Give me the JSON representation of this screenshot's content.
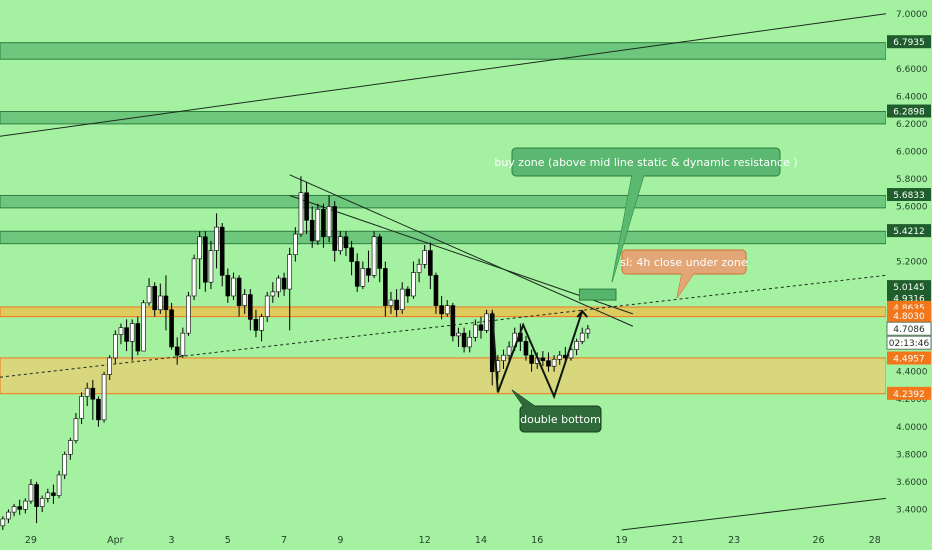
{
  "chart_data": {
    "type": "candlestick",
    "ylim": [
      3.25,
      7.1
    ],
    "xlim": [
      -1.1,
      30.4
    ],
    "yticks": [
      "7.0000",
      "6.6000",
      "6.4000",
      "6.2000",
      "6.0000",
      "5.8000",
      "5.6000",
      "5.2000",
      "4.4000",
      "4.2000",
      "4.0000",
      "3.8000",
      "3.6000",
      "3.4000"
    ],
    "ytick_values": [
      7.0,
      6.6,
      6.4,
      6.2,
      6.0,
      5.8,
      5.6,
      5.2,
      4.4,
      4.2,
      4.0,
      3.8,
      3.6,
      3.4
    ],
    "xticks": [
      {
        "label": "29",
        "day": 0
      },
      {
        "label": "Apr",
        "day": 3
      },
      {
        "label": "3",
        "day": 5
      },
      {
        "label": "5",
        "day": 7
      },
      {
        "label": "7",
        "day": 9
      },
      {
        "label": "9",
        "day": 11
      },
      {
        "label": "12",
        "day": 14
      },
      {
        "label": "14",
        "day": 16
      },
      {
        "label": "16",
        "day": 18
      },
      {
        "label": "19",
        "day": 21
      },
      {
        "label": "21",
        "day": 23
      },
      {
        "label": "23",
        "day": 25
      },
      {
        "label": "26",
        "day": 28
      },
      {
        "label": "28",
        "day": 30
      }
    ],
    "zones": [
      {
        "name": "zone-6.79",
        "from": 6.67,
        "to": 6.79,
        "color": "#3fa45c"
      },
      {
        "name": "zone-6.29",
        "from": 6.2,
        "to": 6.29,
        "color": "#3fa45c"
      },
      {
        "name": "zone-5.68",
        "from": 5.59,
        "to": 5.68,
        "color": "#3fa45c"
      },
      {
        "name": "zone-5.42",
        "from": 5.33,
        "to": 5.42,
        "color": "#3fa45c"
      },
      {
        "name": "zone-4.86",
        "from": 4.8,
        "to": 4.87,
        "color": "#e6c15a"
      },
      {
        "name": "zone-4.49",
        "from": 4.24,
        "to": 4.5,
        "color": "#d7d27a"
      }
    ],
    "price_labels": [
      {
        "text": "6.7935",
        "value": 6.7935,
        "color": "#1f5e2c"
      },
      {
        "text": "6.2898",
        "value": 6.2898,
        "color": "#1f5e2c"
      },
      {
        "text": "5.6833",
        "value": 5.6833,
        "color": "#1f5e2c"
      },
      {
        "text": "5.4212",
        "value": 5.4212,
        "color": "#1f5e2c"
      },
      {
        "text": "5.0145",
        "value": 5.0145,
        "color": "#1f5e2c"
      },
      {
        "text": "4.9316",
        "value": 4.9316,
        "color": "#1f5e2c"
      },
      {
        "text": "4.8635",
        "value": 4.8635,
        "color": "#f2761a"
      },
      {
        "text": "4.8030",
        "value": 4.803,
        "color": "#f2761a"
      },
      {
        "text": "4.7086",
        "value": 4.7086,
        "color": "#ffffff"
      },
      {
        "text": "4.4957",
        "value": 4.4957,
        "color": "#f2761a"
      },
      {
        "text": "4.2392",
        "value": 4.2392,
        "color": "#f2761a"
      }
    ],
    "current_price": "4.7086",
    "countdown": "02:13:46",
    "candles": [
      {
        "x": -1.0,
        "o": 3.28,
        "h": 3.35,
        "c": 3.33,
        "l": 3.25
      },
      {
        "x": -0.8,
        "o": 3.33,
        "h": 3.4,
        "c": 3.38,
        "l": 3.3
      },
      {
        "x": -0.6,
        "o": 3.38,
        "h": 3.44,
        "c": 3.42,
        "l": 3.35
      },
      {
        "x": -0.4,
        "o": 3.42,
        "h": 3.47,
        "c": 3.4,
        "l": 3.36
      },
      {
        "x": -0.2,
        "o": 3.4,
        "h": 3.48,
        "c": 3.46,
        "l": 3.37
      },
      {
        "x": 0.0,
        "o": 3.46,
        "h": 3.62,
        "c": 3.58,
        "l": 3.44
      },
      {
        "x": 0.2,
        "o": 3.58,
        "h": 3.6,
        "c": 3.42,
        "l": 3.3
      },
      {
        "x": 0.4,
        "o": 3.42,
        "h": 3.5,
        "c": 3.48,
        "l": 3.38
      },
      {
        "x": 0.6,
        "o": 3.48,
        "h": 3.55,
        "c": 3.52,
        "l": 3.45
      },
      {
        "x": 0.8,
        "o": 3.52,
        "h": 3.58,
        "c": 3.5,
        "l": 3.44
      },
      {
        "x": 1.0,
        "o": 3.5,
        "h": 3.68,
        "c": 3.65,
        "l": 3.48
      },
      {
        "x": 1.2,
        "o": 3.65,
        "h": 3.82,
        "c": 3.8,
        "l": 3.62
      },
      {
        "x": 1.4,
        "o": 3.8,
        "h": 3.92,
        "c": 3.9,
        "l": 3.76
      },
      {
        "x": 1.6,
        "o": 3.9,
        "h": 4.1,
        "c": 4.06,
        "l": 3.88
      },
      {
        "x": 1.8,
        "o": 4.06,
        "h": 4.25,
        "c": 4.22,
        "l": 4.02
      },
      {
        "x": 2.0,
        "o": 4.22,
        "h": 4.32,
        "c": 4.28,
        "l": 4.15
      },
      {
        "x": 2.2,
        "o": 4.28,
        "h": 4.34,
        "c": 4.2,
        "l": 4.05
      },
      {
        "x": 2.4,
        "o": 4.2,
        "h": 4.22,
        "c": 4.05,
        "l": 4.0
      },
      {
        "x": 2.6,
        "o": 4.05,
        "h": 4.4,
        "c": 4.38,
        "l": 4.03
      },
      {
        "x": 2.8,
        "o": 4.38,
        "h": 4.52,
        "c": 4.5,
        "l": 4.34
      },
      {
        "x": 3.0,
        "o": 4.5,
        "h": 4.7,
        "c": 4.67,
        "l": 4.46
      },
      {
        "x": 3.2,
        "o": 4.67,
        "h": 4.75,
        "c": 4.72,
        "l": 4.6
      },
      {
        "x": 3.4,
        "o": 4.72,
        "h": 4.78,
        "c": 4.62,
        "l": 4.55
      },
      {
        "x": 3.6,
        "o": 4.62,
        "h": 4.78,
        "c": 4.75,
        "l": 4.48
      },
      {
        "x": 3.8,
        "o": 4.75,
        "h": 4.8,
        "c": 4.55,
        "l": 4.52
      },
      {
        "x": 4.0,
        "o": 4.55,
        "h": 4.92,
        "c": 4.9,
        "l": 4.55
      },
      {
        "x": 4.2,
        "o": 4.9,
        "h": 5.08,
        "c": 5.02,
        "l": 4.88
      },
      {
        "x": 4.4,
        "o": 5.02,
        "h": 5.05,
        "c": 4.85,
        "l": 4.8
      },
      {
        "x": 4.6,
        "o": 4.85,
        "h": 5.04,
        "c": 4.95,
        "l": 4.82
      },
      {
        "x": 4.8,
        "o": 4.95,
        "h": 5.1,
        "c": 4.85,
        "l": 4.7
      },
      {
        "x": 5.0,
        "o": 4.85,
        "h": 4.9,
        "c": 4.58,
        "l": 4.56
      },
      {
        "x": 5.2,
        "o": 4.58,
        "h": 4.65,
        "c": 4.52,
        "l": 4.45
      },
      {
        "x": 5.4,
        "o": 4.52,
        "h": 4.72,
        "c": 4.68,
        "l": 4.5
      },
      {
        "x": 5.6,
        "o": 4.68,
        "h": 4.98,
        "c": 4.95,
        "l": 4.66
      },
      {
        "x": 5.8,
        "o": 4.95,
        "h": 5.25,
        "c": 5.22,
        "l": 4.92
      },
      {
        "x": 6.0,
        "o": 5.22,
        "h": 5.42,
        "c": 5.38,
        "l": 5.0
      },
      {
        "x": 6.2,
        "o": 5.38,
        "h": 5.42,
        "c": 5.05,
        "l": 4.98
      },
      {
        "x": 6.4,
        "o": 5.05,
        "h": 5.35,
        "c": 5.28,
        "l": 5.0
      },
      {
        "x": 6.6,
        "o": 5.28,
        "h": 5.55,
        "c": 5.45,
        "l": 5.15
      },
      {
        "x": 6.8,
        "o": 5.45,
        "h": 5.48,
        "c": 5.1,
        "l": 5.02
      },
      {
        "x": 7.0,
        "o": 5.1,
        "h": 5.15,
        "c": 4.95,
        "l": 4.9
      },
      {
        "x": 7.2,
        "o": 4.95,
        "h": 5.12,
        "c": 5.08,
        "l": 4.92
      },
      {
        "x": 7.4,
        "o": 5.08,
        "h": 5.1,
        "c": 4.88,
        "l": 4.8
      },
      {
        "x": 7.6,
        "o": 4.88,
        "h": 5.0,
        "c": 4.96,
        "l": 4.82
      },
      {
        "x": 7.8,
        "o": 4.96,
        "h": 5.0,
        "c": 4.78,
        "l": 4.7
      },
      {
        "x": 8.0,
        "o": 4.78,
        "h": 4.85,
        "c": 4.7,
        "l": 4.65
      },
      {
        "x": 8.2,
        "o": 4.7,
        "h": 4.82,
        "c": 4.8,
        "l": 4.62
      },
      {
        "x": 8.4,
        "o": 4.8,
        "h": 4.98,
        "c": 4.95,
        "l": 4.76
      },
      {
        "x": 8.6,
        "o": 4.95,
        "h": 5.05,
        "c": 4.98,
        "l": 4.9
      },
      {
        "x": 8.8,
        "o": 4.98,
        "h": 5.1,
        "c": 5.08,
        "l": 4.94
      },
      {
        "x": 9.0,
        "o": 5.08,
        "h": 5.12,
        "c": 5.0,
        "l": 4.95
      },
      {
        "x": 9.2,
        "o": 5.0,
        "h": 5.3,
        "c": 5.25,
        "l": 4.7
      },
      {
        "x": 9.4,
        "o": 5.25,
        "h": 5.45,
        "c": 5.4,
        "l": 5.2
      },
      {
        "x": 9.6,
        "o": 5.4,
        "h": 5.82,
        "c": 5.7,
        "l": 5.38
      },
      {
        "x": 9.8,
        "o": 5.7,
        "h": 5.78,
        "c": 5.5,
        "l": 5.4
      },
      {
        "x": 10.0,
        "o": 5.5,
        "h": 5.6,
        "c": 5.35,
        "l": 5.3
      },
      {
        "x": 10.2,
        "o": 5.35,
        "h": 5.62,
        "c": 5.58,
        "l": 5.32
      },
      {
        "x": 10.4,
        "o": 5.58,
        "h": 5.62,
        "c": 5.38,
        "l": 5.3
      },
      {
        "x": 10.6,
        "o": 5.38,
        "h": 5.68,
        "c": 5.6,
        "l": 5.34
      },
      {
        "x": 10.8,
        "o": 5.6,
        "h": 5.64,
        "c": 5.28,
        "l": 5.2
      },
      {
        "x": 11.0,
        "o": 5.28,
        "h": 5.42,
        "c": 5.38,
        "l": 5.25
      },
      {
        "x": 11.2,
        "o": 5.38,
        "h": 5.42,
        "c": 5.3,
        "l": 5.24
      },
      {
        "x": 11.4,
        "o": 5.3,
        "h": 5.35,
        "c": 5.2,
        "l": 5.1
      },
      {
        "x": 11.6,
        "o": 5.2,
        "h": 5.26,
        "c": 5.02,
        "l": 4.98
      },
      {
        "x": 11.8,
        "o": 5.02,
        "h": 5.2,
        "c": 5.15,
        "l": 5.0
      },
      {
        "x": 12.0,
        "o": 5.15,
        "h": 5.28,
        "c": 5.1,
        "l": 5.05
      },
      {
        "x": 12.2,
        "o": 5.1,
        "h": 5.42,
        "c": 5.38,
        "l": 5.08
      },
      {
        "x": 12.4,
        "o": 5.38,
        "h": 5.4,
        "c": 5.15,
        "l": 5.05
      },
      {
        "x": 12.6,
        "o": 5.15,
        "h": 5.2,
        "c": 4.88,
        "l": 4.8
      },
      {
        "x": 12.8,
        "o": 4.88,
        "h": 4.98,
        "c": 4.92,
        "l": 4.82
      },
      {
        "x": 13.0,
        "o": 4.92,
        "h": 5.0,
        "c": 4.85,
        "l": 4.8
      },
      {
        "x": 13.2,
        "o": 4.85,
        "h": 5.05,
        "c": 5.0,
        "l": 4.82
      },
      {
        "x": 13.4,
        "o": 5.0,
        "h": 5.02,
        "c": 4.95,
        "l": 4.9
      },
      {
        "x": 13.6,
        "o": 4.95,
        "h": 5.2,
        "c": 5.12,
        "l": 4.93
      },
      {
        "x": 13.8,
        "o": 5.12,
        "h": 5.22,
        "c": 5.18,
        "l": 5.05
      },
      {
        "x": 14.0,
        "o": 5.18,
        "h": 5.32,
        "c": 5.28,
        "l": 5.15
      },
      {
        "x": 14.2,
        "o": 5.28,
        "h": 5.34,
        "c": 5.1,
        "l": 5.0
      },
      {
        "x": 14.4,
        "o": 5.1,
        "h": 5.12,
        "c": 4.88,
        "l": 4.82
      },
      {
        "x": 14.6,
        "o": 4.88,
        "h": 4.95,
        "c": 4.82,
        "l": 4.78
      },
      {
        "x": 14.8,
        "o": 4.82,
        "h": 4.92,
        "c": 4.88,
        "l": 4.8
      },
      {
        "x": 15.0,
        "o": 4.88,
        "h": 4.9,
        "c": 4.66,
        "l": 4.62
      },
      {
        "x": 15.2,
        "o": 4.66,
        "h": 4.72,
        "c": 4.68,
        "l": 4.58
      },
      {
        "x": 15.4,
        "o": 4.68,
        "h": 4.72,
        "c": 4.58,
        "l": 4.54
      },
      {
        "x": 15.6,
        "o": 4.58,
        "h": 4.7,
        "c": 4.65,
        "l": 4.54
      },
      {
        "x": 15.8,
        "o": 4.65,
        "h": 4.78,
        "c": 4.74,
        "l": 4.62
      },
      {
        "x": 16.0,
        "o": 4.74,
        "h": 4.8,
        "c": 4.7,
        "l": 4.64
      },
      {
        "x": 16.2,
        "o": 4.7,
        "h": 4.85,
        "c": 4.82,
        "l": 4.68
      },
      {
        "x": 16.4,
        "o": 4.82,
        "h": 4.85,
        "c": 4.4,
        "l": 4.3
      },
      {
        "x": 16.6,
        "o": 4.4,
        "h": 4.52,
        "c": 4.48,
        "l": 4.34
      },
      {
        "x": 16.8,
        "o": 4.48,
        "h": 4.56,
        "c": 4.52,
        "l": 4.42
      },
      {
        "x": 17.0,
        "o": 4.52,
        "h": 4.62,
        "c": 4.58,
        "l": 4.48
      },
      {
        "x": 17.2,
        "o": 4.58,
        "h": 4.72,
        "c": 4.68,
        "l": 4.55
      },
      {
        "x": 17.4,
        "o": 4.68,
        "h": 4.75,
        "c": 4.62,
        "l": 4.55
      },
      {
        "x": 17.6,
        "o": 4.62,
        "h": 4.66,
        "c": 4.52,
        "l": 4.48
      },
      {
        "x": 17.8,
        "o": 4.52,
        "h": 4.56,
        "c": 4.46,
        "l": 4.4
      },
      {
        "x": 18.0,
        "o": 4.46,
        "h": 4.54,
        "c": 4.5,
        "l": 4.42
      },
      {
        "x": 18.2,
        "o": 4.5,
        "h": 4.55,
        "c": 4.48,
        "l": 4.44
      },
      {
        "x": 18.4,
        "o": 4.48,
        "h": 4.54,
        "c": 4.44,
        "l": 4.4
      },
      {
        "x": 18.6,
        "o": 4.44,
        "h": 4.52,
        "c": 4.49,
        "l": 4.4
      },
      {
        "x": 18.8,
        "o": 4.49,
        "h": 4.55,
        "c": 4.52,
        "l": 4.45
      },
      {
        "x": 19.0,
        "o": 4.52,
        "h": 4.58,
        "c": 4.5,
        "l": 4.46
      },
      {
        "x": 19.2,
        "o": 4.5,
        "h": 4.6,
        "c": 4.56,
        "l": 4.48
      },
      {
        "x": 19.4,
        "o": 4.56,
        "h": 4.64,
        "c": 4.62,
        "l": 4.52
      },
      {
        "x": 19.6,
        "o": 4.62,
        "h": 4.72,
        "c": 4.68,
        "l": 4.6
      },
      {
        "x": 19.8,
        "o": 4.68,
        "h": 4.74,
        "c": 4.71,
        "l": 4.64
      }
    ],
    "trendlines": [
      {
        "name": "long-uptrend-line",
        "p1": [
          -1.1,
          6.11
        ],
        "p2": [
          30.4,
          7.0
        ],
        "style": "solid"
      },
      {
        "name": "lower-channel-line",
        "p1": [
          21.0,
          3.25
        ],
        "p2": [
          30.4,
          3.48
        ],
        "style": "solid"
      },
      {
        "name": "dynamic-resistance-upper",
        "p1": [
          9.2,
          5.83
        ],
        "p2": [
          21.4,
          4.73
        ],
        "style": "solid"
      },
      {
        "name": "dynamic-resistance-lower",
        "p1": [
          9.2,
          5.68
        ],
        "p2": [
          21.4,
          4.82
        ],
        "style": "solid"
      },
      {
        "name": "dotted-midline",
        "p1": [
          -1.1,
          4.36
        ],
        "p2": [
          30.4,
          5.1
        ],
        "style": "dashed"
      }
    ],
    "pattern_path": [
      [
        16.4,
        4.83
      ],
      [
        16.6,
        4.25
      ],
      [
        17.5,
        4.74
      ],
      [
        18.6,
        4.22
      ],
      [
        19.6,
        4.84
      ]
    ],
    "buy_zone_box": {
      "x1": 19.5,
      "x2": 20.8,
      "y1": 4.92,
      "y2": 5.0
    },
    "annotations": [
      {
        "text": "buy zone (above mid line static & dynamic resistance )",
        "kind": "buy"
      },
      {
        "text": "sl: 4h close under zone",
        "kind": "sl"
      },
      {
        "text": "double bottom",
        "kind": "pattern"
      }
    ]
  }
}
